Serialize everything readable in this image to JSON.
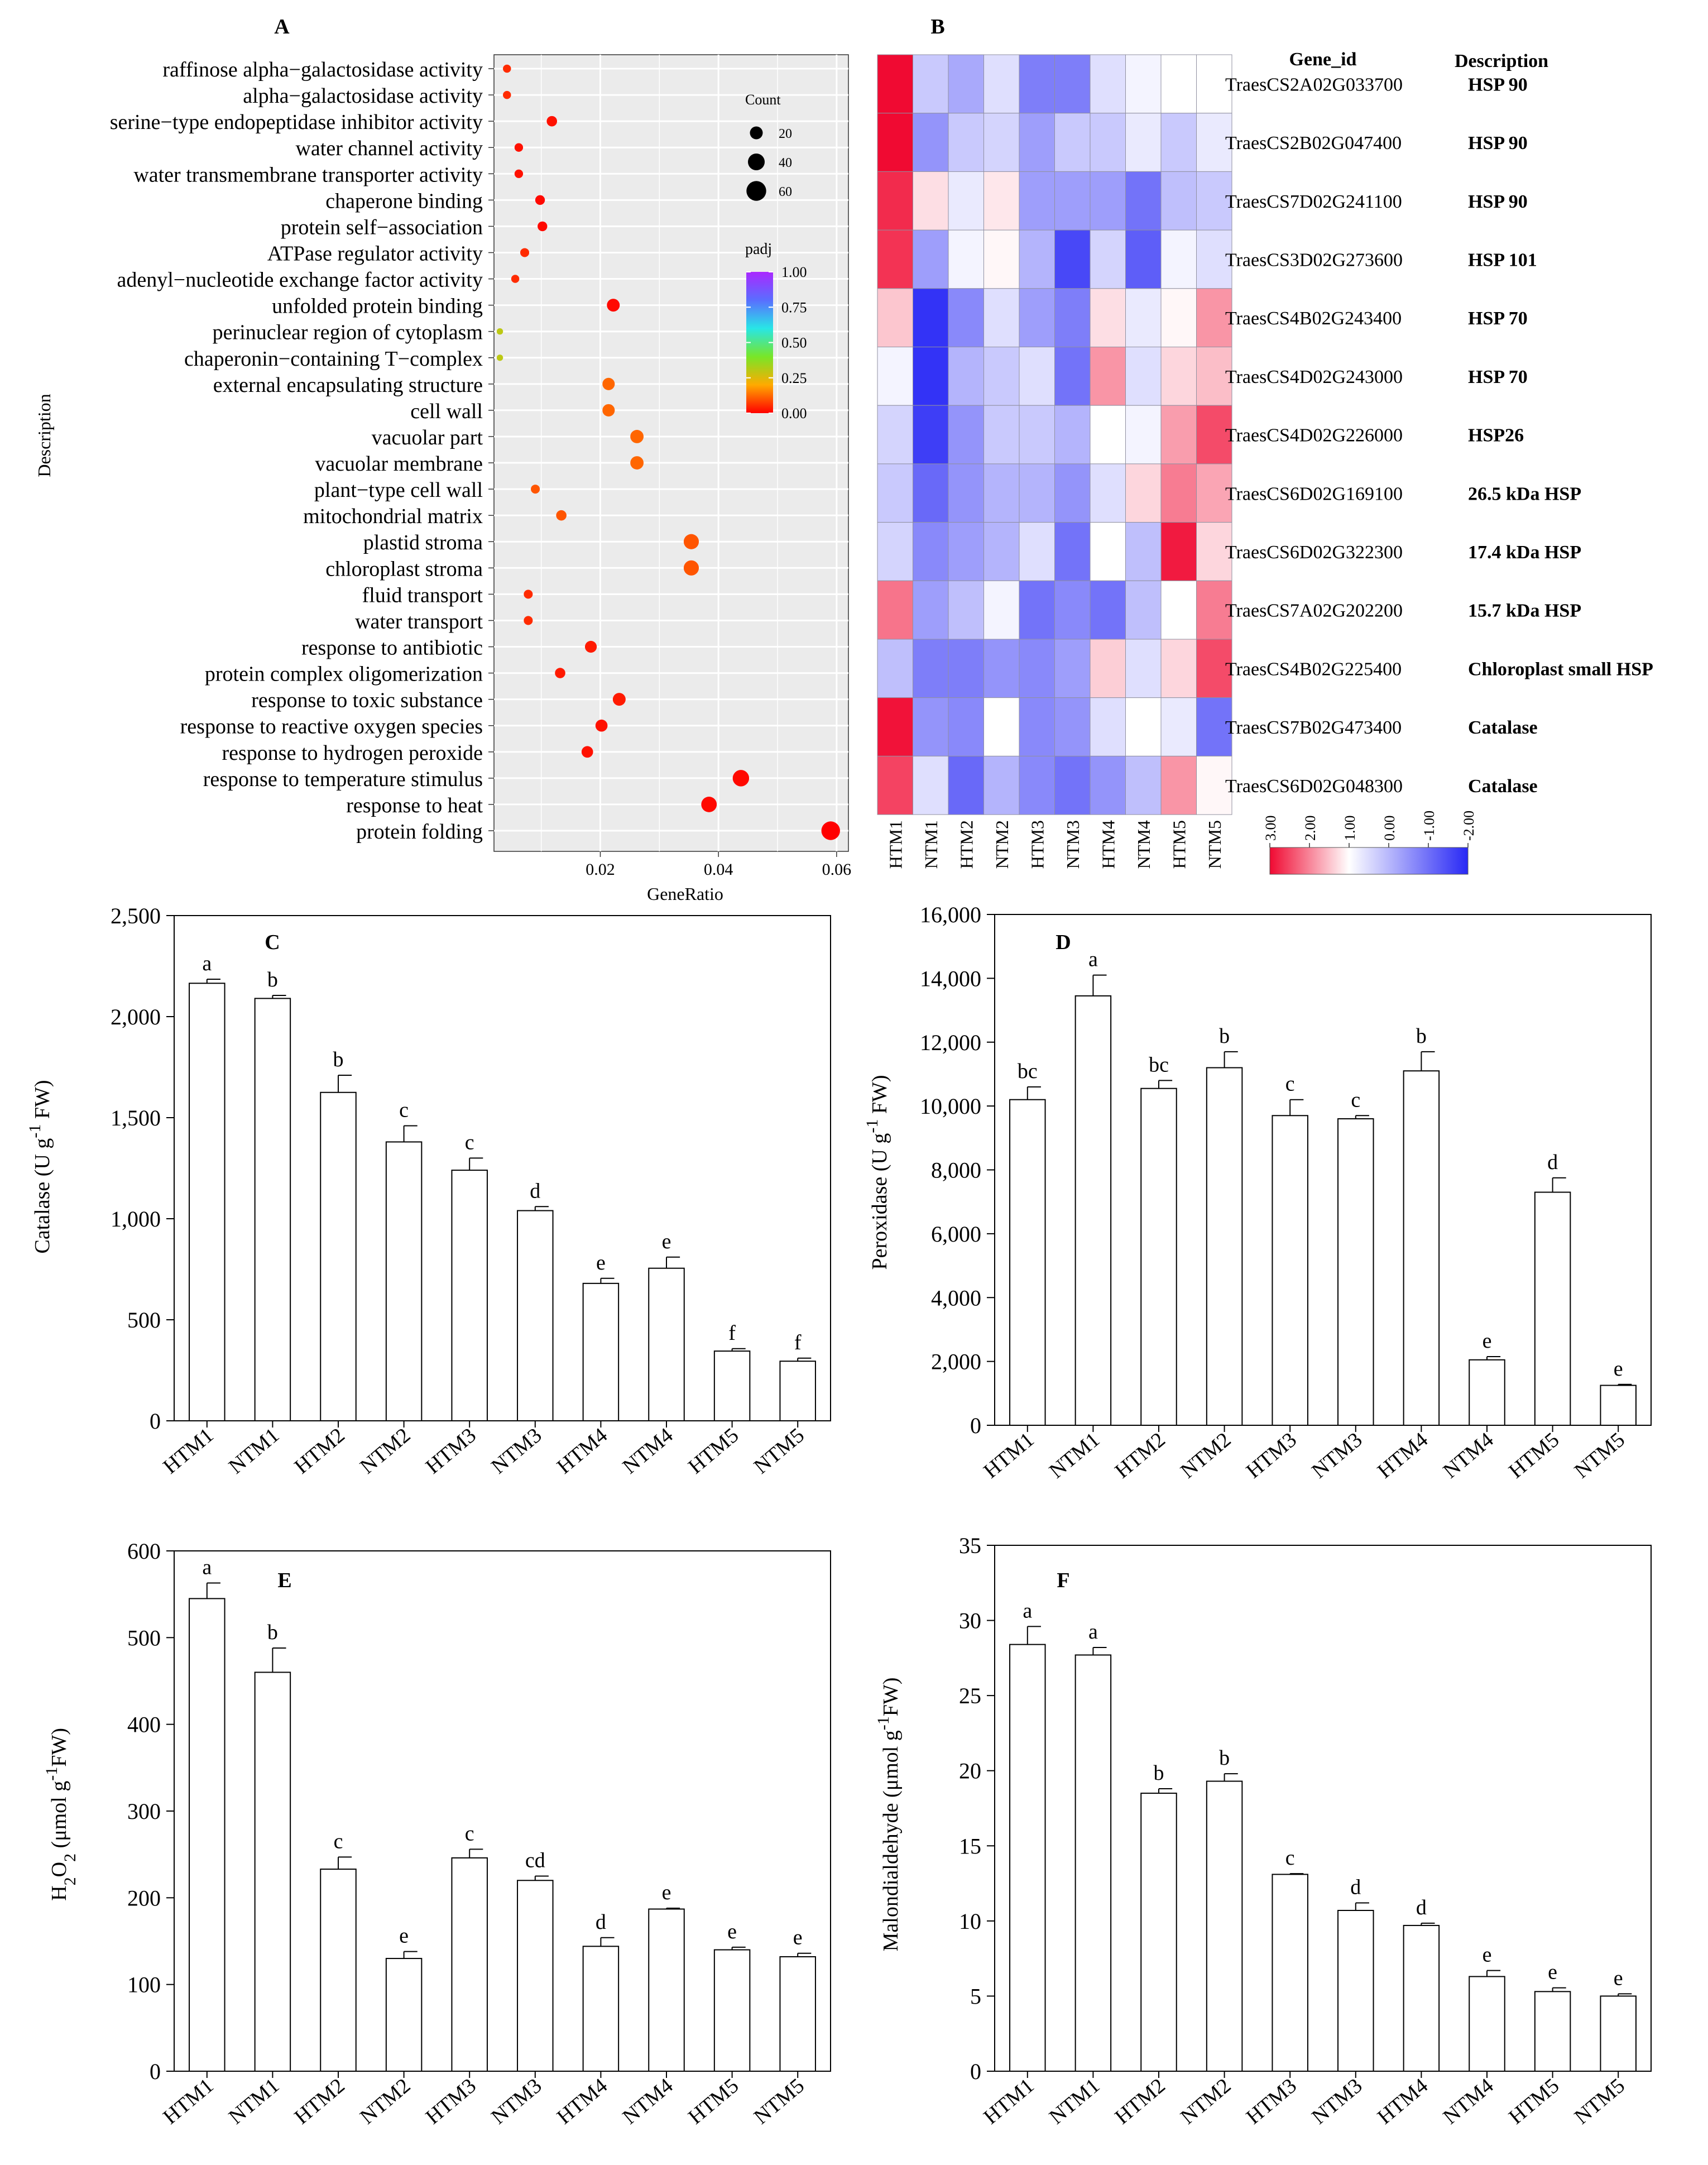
{
  "chart_data": [
    {
      "id": "A",
      "panel_label": "A",
      "type": "scatter",
      "title": "",
      "xlabel": "GeneRatio",
      "ylabel": "Description",
      "xlim": [
        0.002,
        0.062
      ],
      "xticks": [
        0.02,
        0.04,
        0.06
      ],
      "xtick_labels": [
        "0.02",
        "0.04",
        "0.06"
      ],
      "grid": true,
      "legend_count": {
        "title": "Count",
        "labels": [
          "20",
          "40",
          "60"
        ],
        "values": [
          20,
          40,
          60
        ]
      },
      "legend_padj": {
        "title": "padj",
        "labels": [
          "1.00",
          "0.75",
          "0.50",
          "0.25",
          "0.00"
        ],
        "values": [
          1.0,
          0.75,
          0.5,
          0.25,
          0.0
        ]
      },
      "points": [
        {
          "term": "raffinose alpha−galactosidase activity",
          "ratio": 0.0042,
          "count": 5,
          "padj": 0.05
        },
        {
          "term": "alpha−galactosidase activity",
          "ratio": 0.0042,
          "count": 5,
          "padj": 0.05
        },
        {
          "term": "serine−type endopeptidase inhibitor activity",
          "ratio": 0.0118,
          "count": 11,
          "padj": 0.02
        },
        {
          "term": "water channel activity",
          "ratio": 0.0062,
          "count": 6,
          "padj": 0.02
        },
        {
          "term": "water transmembrane transporter activity",
          "ratio": 0.0062,
          "count": 6,
          "padj": 0.02
        },
        {
          "term": "chaperone binding",
          "ratio": 0.0098,
          "count": 9,
          "padj": 0.01
        },
        {
          "term": "protein self−association",
          "ratio": 0.0102,
          "count": 9,
          "padj": 0.01
        },
        {
          "term": "ATPase regulator activity",
          "ratio": 0.0072,
          "count": 7,
          "padj": 0.05
        },
        {
          "term": "adenyl−nucleotide exchange factor activity",
          "ratio": 0.0056,
          "count": 5,
          "padj": 0.05
        },
        {
          "term": "unfolded protein binding",
          "ratio": 0.0222,
          "count": 20,
          "padj": 0.01
        },
        {
          "term": "perinuclear region of cytoplasm",
          "ratio": 0.003,
          "count": 2,
          "padj": 0.3
        },
        {
          "term": "chaperonin−containing T−complex",
          "ratio": 0.003,
          "count": 2,
          "padj": 0.3
        },
        {
          "term": "external encapsulating structure",
          "ratio": 0.0214,
          "count": 18,
          "padj": 0.12
        },
        {
          "term": "cell wall",
          "ratio": 0.0214,
          "count": 18,
          "padj": 0.12
        },
        {
          "term": "vacuolar part",
          "ratio": 0.0262,
          "count": 22,
          "padj": 0.12
        },
        {
          "term": "vacuolar membrane",
          "ratio": 0.0262,
          "count": 22,
          "padj": 0.12
        },
        {
          "term": "plant−type cell wall",
          "ratio": 0.009,
          "count": 7,
          "padj": 0.1
        },
        {
          "term": "mitochondrial matrix",
          "ratio": 0.0134,
          "count": 11,
          "padj": 0.1
        },
        {
          "term": "plastid stroma",
          "ratio": 0.0354,
          "count": 31,
          "padj": 0.1
        },
        {
          "term": "chloroplast stroma",
          "ratio": 0.0354,
          "count": 31,
          "padj": 0.1
        },
        {
          "term": "fluid transport",
          "ratio": 0.0078,
          "count": 7,
          "padj": 0.05
        },
        {
          "term": "water transport",
          "ratio": 0.0078,
          "count": 7,
          "padj": 0.05
        },
        {
          "term": "response to antibiotic",
          "ratio": 0.0184,
          "count": 16,
          "padj": 0.03
        },
        {
          "term": "protein complex oligomerization",
          "ratio": 0.0132,
          "count": 11,
          "padj": 0.03
        },
        {
          "term": "response to toxic substance",
          "ratio": 0.0232,
          "count": 20,
          "padj": 0.03
        },
        {
          "term": "response to reactive oxygen species",
          "ratio": 0.0202,
          "count": 17,
          "padj": 0.02
        },
        {
          "term": "response to hydrogen peroxide",
          "ratio": 0.0178,
          "count": 15,
          "padj": 0.02
        },
        {
          "term": "response to temperature stimulus",
          "ratio": 0.0438,
          "count": 38,
          "padj": 0.01
        },
        {
          "term": "response to heat",
          "ratio": 0.0384,
          "count": 33,
          "padj": 0.01
        },
        {
          "term": "protein folding",
          "ratio": 0.059,
          "count": 52,
          "padj": 0.0
        }
      ]
    },
    {
      "id": "B",
      "panel_label": "B",
      "type": "heatmap",
      "title": "",
      "columns": [
        "HTM1",
        "NTM1",
        "HTM2",
        "NTM2",
        "HTM3",
        "NTM3",
        "HTM4",
        "NTM4",
        "HTM5",
        "NTM5"
      ],
      "header_gene": "Gene_id",
      "header_desc": "Description",
      "scale": {
        "min": -2.0,
        "max": 3.0,
        "ticks": [
          3.0,
          2.0,
          1.0,
          0.0,
          -1.0,
          -2.0
        ],
        "tick_labels": [
          "3.00",
          "2.00",
          "1.00",
          "0.00",
          "-1.00",
          "-2.00"
        ]
      },
      "rows": [
        {
          "gene": "TraesCS2A02G033700",
          "desc": "HSP 90",
          "values": [
            3.0,
            -0.5,
            -0.8,
            -0.3,
            -1.2,
            -1.2,
            -0.3,
            -0.1,
            0.0,
            0.0
          ]
        },
        {
          "gene": "TraesCS2B02G047400",
          "desc": "HSP 90",
          "values": [
            3.0,
            -1.0,
            -0.5,
            -0.4,
            -0.9,
            -0.5,
            -0.5,
            -0.2,
            -0.5,
            -0.2
          ]
        },
        {
          "gene": "TraesCS7D02G241100",
          "desc": "HSP 90",
          "values": [
            2.6,
            0.4,
            -0.2,
            0.3,
            -0.9,
            -0.9,
            -0.9,
            -1.3,
            -0.6,
            -0.5
          ]
        },
        {
          "gene": "TraesCS3D02G273600",
          "desc": "HSP 101",
          "values": [
            2.5,
            -0.9,
            -0.1,
            0.1,
            -0.7,
            -1.7,
            -0.4,
            -1.5,
            -0.1,
            -0.3
          ]
        },
        {
          "gene": "TraesCS4B02G243400",
          "desc": "HSP 70",
          "values": [
            0.7,
            -1.9,
            -1.1,
            -0.3,
            -0.9,
            -1.2,
            0.4,
            -0.2,
            0.1,
            1.3
          ]
        },
        {
          "gene": "TraesCS4D02G243000",
          "desc": "HSP 70",
          "values": [
            -0.1,
            -1.9,
            -0.7,
            -0.5,
            -0.3,
            -1.3,
            1.3,
            -0.3,
            0.5,
            0.8
          ]
        },
        {
          "gene": "TraesCS4D02G226000",
          "desc": "HSP26",
          "values": [
            -0.4,
            -1.8,
            -1.0,
            -0.5,
            -0.5,
            -0.7,
            0.0,
            -0.1,
            1.2,
            2.2
          ]
        },
        {
          "gene": "TraesCS6D02G169100",
          "desc": "26.5 kDa HSP",
          "values": [
            -0.5,
            -1.4,
            -1.0,
            -0.7,
            -0.7,
            -1.0,
            -0.3,
            0.5,
            1.6,
            1.1
          ]
        },
        {
          "gene": "TraesCS6D02G322300",
          "desc": "17.4 kDa HSP",
          "values": [
            -0.4,
            -1.1,
            -0.9,
            -0.7,
            -0.3,
            -1.3,
            0.0,
            -0.6,
            2.8,
            0.5
          ]
        },
        {
          "gene": "TraesCS7A02G202200",
          "desc": "15.7 kDa HSP",
          "values": [
            1.7,
            -0.9,
            -0.6,
            -0.1,
            -1.3,
            -1.1,
            -1.3,
            -0.6,
            0.0,
            1.6
          ]
        },
        {
          "gene": "TraesCS4B02G225400",
          "desc": "Chloroplast small HSP",
          "values": [
            -0.6,
            -1.2,
            -1.2,
            -1.0,
            -1.1,
            -0.9,
            0.6,
            -0.3,
            0.5,
            2.2
          ]
        },
        {
          "gene": "TraesCS7B02G473400",
          "desc": "Catalase",
          "values": [
            2.9,
            -1.0,
            -1.1,
            0.0,
            -1.1,
            -1.0,
            -0.3,
            0.0,
            -0.2,
            -1.3
          ]
        },
        {
          "gene": "TraesCS6D02G048300",
          "desc": "Catalase",
          "values": [
            2.3,
            -0.3,
            -1.4,
            -0.7,
            -1.1,
            -1.3,
            -1.0,
            -0.6,
            1.3,
            0.1
          ]
        }
      ]
    },
    {
      "id": "C",
      "panel_label": "C",
      "type": "bar",
      "title": "",
      "xlabel": "",
      "ylabel_parts": [
        "Catalase  (U g",
        "-1",
        " FW)"
      ],
      "ylim": [
        0,
        2500
      ],
      "yticks": [
        0,
        500,
        1000,
        1500,
        2000,
        2500
      ],
      "ytick_labels": [
        "0",
        "500",
        "1,000",
        "1,500",
        "2,000",
        "2,500"
      ],
      "categories": [
        "HTM1",
        "NTM1",
        "HTM2",
        "NTM2",
        "HTM3",
        "NTM3",
        "HTM4",
        "NTM4",
        "HTM5",
        "NTM5"
      ],
      "values": [
        2165,
        2090,
        1625,
        1380,
        1240,
        1040,
        680,
        755,
        345,
        295
      ],
      "errors": [
        20,
        15,
        85,
        80,
        60,
        20,
        25,
        55,
        12,
        15
      ],
      "letters": [
        "a",
        "b",
        "b",
        "c",
        "c",
        "d",
        "e",
        "e",
        "f",
        "f"
      ]
    },
    {
      "id": "D",
      "panel_label": "D",
      "type": "bar",
      "title": "",
      "xlabel": "",
      "ylabel_parts": [
        "Peroxidase    (U g",
        "-1",
        "  FW)"
      ],
      "ylim": [
        0,
        16000
      ],
      "yticks": [
        0,
        2000,
        4000,
        6000,
        8000,
        10000,
        12000,
        14000,
        16000
      ],
      "ytick_labels": [
        "0",
        "2,000",
        "4,000",
        "6,000",
        "8,000",
        "10,000",
        "12,000",
        "14,000",
        "16,000"
      ],
      "categories": [
        "HTM1",
        "NTM1",
        "HTM2",
        "NTM2",
        "HTM3",
        "NTM3",
        "HTM4",
        "NTM4",
        "HTM5",
        "NTM5"
      ],
      "values": [
        10200,
        13450,
        10550,
        11200,
        9700,
        9600,
        11100,
        2050,
        7300,
        1250
      ],
      "errors": [
        400,
        650,
        250,
        500,
        500,
        100,
        600,
        100,
        450,
        30
      ],
      "letters": [
        "bc",
        "a",
        "bc",
        "b",
        "c",
        "c",
        "b",
        "e",
        "d",
        "e"
      ]
    },
    {
      "id": "E",
      "panel_label": "E",
      "type": "bar",
      "title": "",
      "xlabel": "",
      "ylabel_parts": [
        "H",
        "2",
        "O",
        "2",
        " (μmol g",
        "-1",
        "FW)"
      ],
      "ylim": [
        0,
        600
      ],
      "yticks": [
        0,
        100,
        200,
        300,
        400,
        500,
        600
      ],
      "ytick_labels": [
        "0",
        "100",
        "200",
        "300",
        "400",
        "500",
        "600"
      ],
      "categories": [
        "HTM1",
        "NTM1",
        "HTM2",
        "NTM2",
        "HTM3",
        "NTM3",
        "HTM4",
        "NTM4",
        "HTM5",
        "NTM5"
      ],
      "values": [
        545,
        460,
        233,
        130,
        246,
        220,
        144,
        187,
        140,
        132
      ],
      "errors": [
        18,
        28,
        14,
        8,
        10,
        5,
        10,
        1,
        3,
        4
      ],
      "letters": [
        "a",
        "b",
        "c",
        "e",
        "c",
        "cd",
        "d",
        "e",
        "e",
        "e"
      ]
    },
    {
      "id": "F",
      "panel_label": "F",
      "type": "bar",
      "title": "",
      "xlabel": "",
      "ylabel_parts": [
        "Malondialdehyde    (μmol g",
        "-1",
        "FW)"
      ],
      "ylim": [
        0,
        35
      ],
      "yticks": [
        0,
        5,
        10,
        15,
        20,
        25,
        30,
        35
      ],
      "ytick_labels": [
        "0",
        "5",
        "10",
        "15",
        "20",
        "25",
        "30",
        "35"
      ],
      "categories": [
        "HTM1",
        "NTM1",
        "HTM2",
        "NTM2",
        "HTM3",
        "NTM3",
        "HTM4",
        "NTM4",
        "HTM5",
        "NTM5"
      ],
      "values": [
        28.4,
        27.7,
        18.5,
        19.3,
        13.1,
        10.7,
        9.7,
        6.3,
        5.3,
        5.0
      ],
      "errors": [
        1.2,
        0.5,
        0.3,
        0.5,
        0.05,
        0.5,
        0.15,
        0.4,
        0.25,
        0.15
      ],
      "letters": [
        "a",
        "a",
        "b",
        "b",
        "c",
        "d",
        "d",
        "e",
        "e",
        "e"
      ]
    }
  ]
}
